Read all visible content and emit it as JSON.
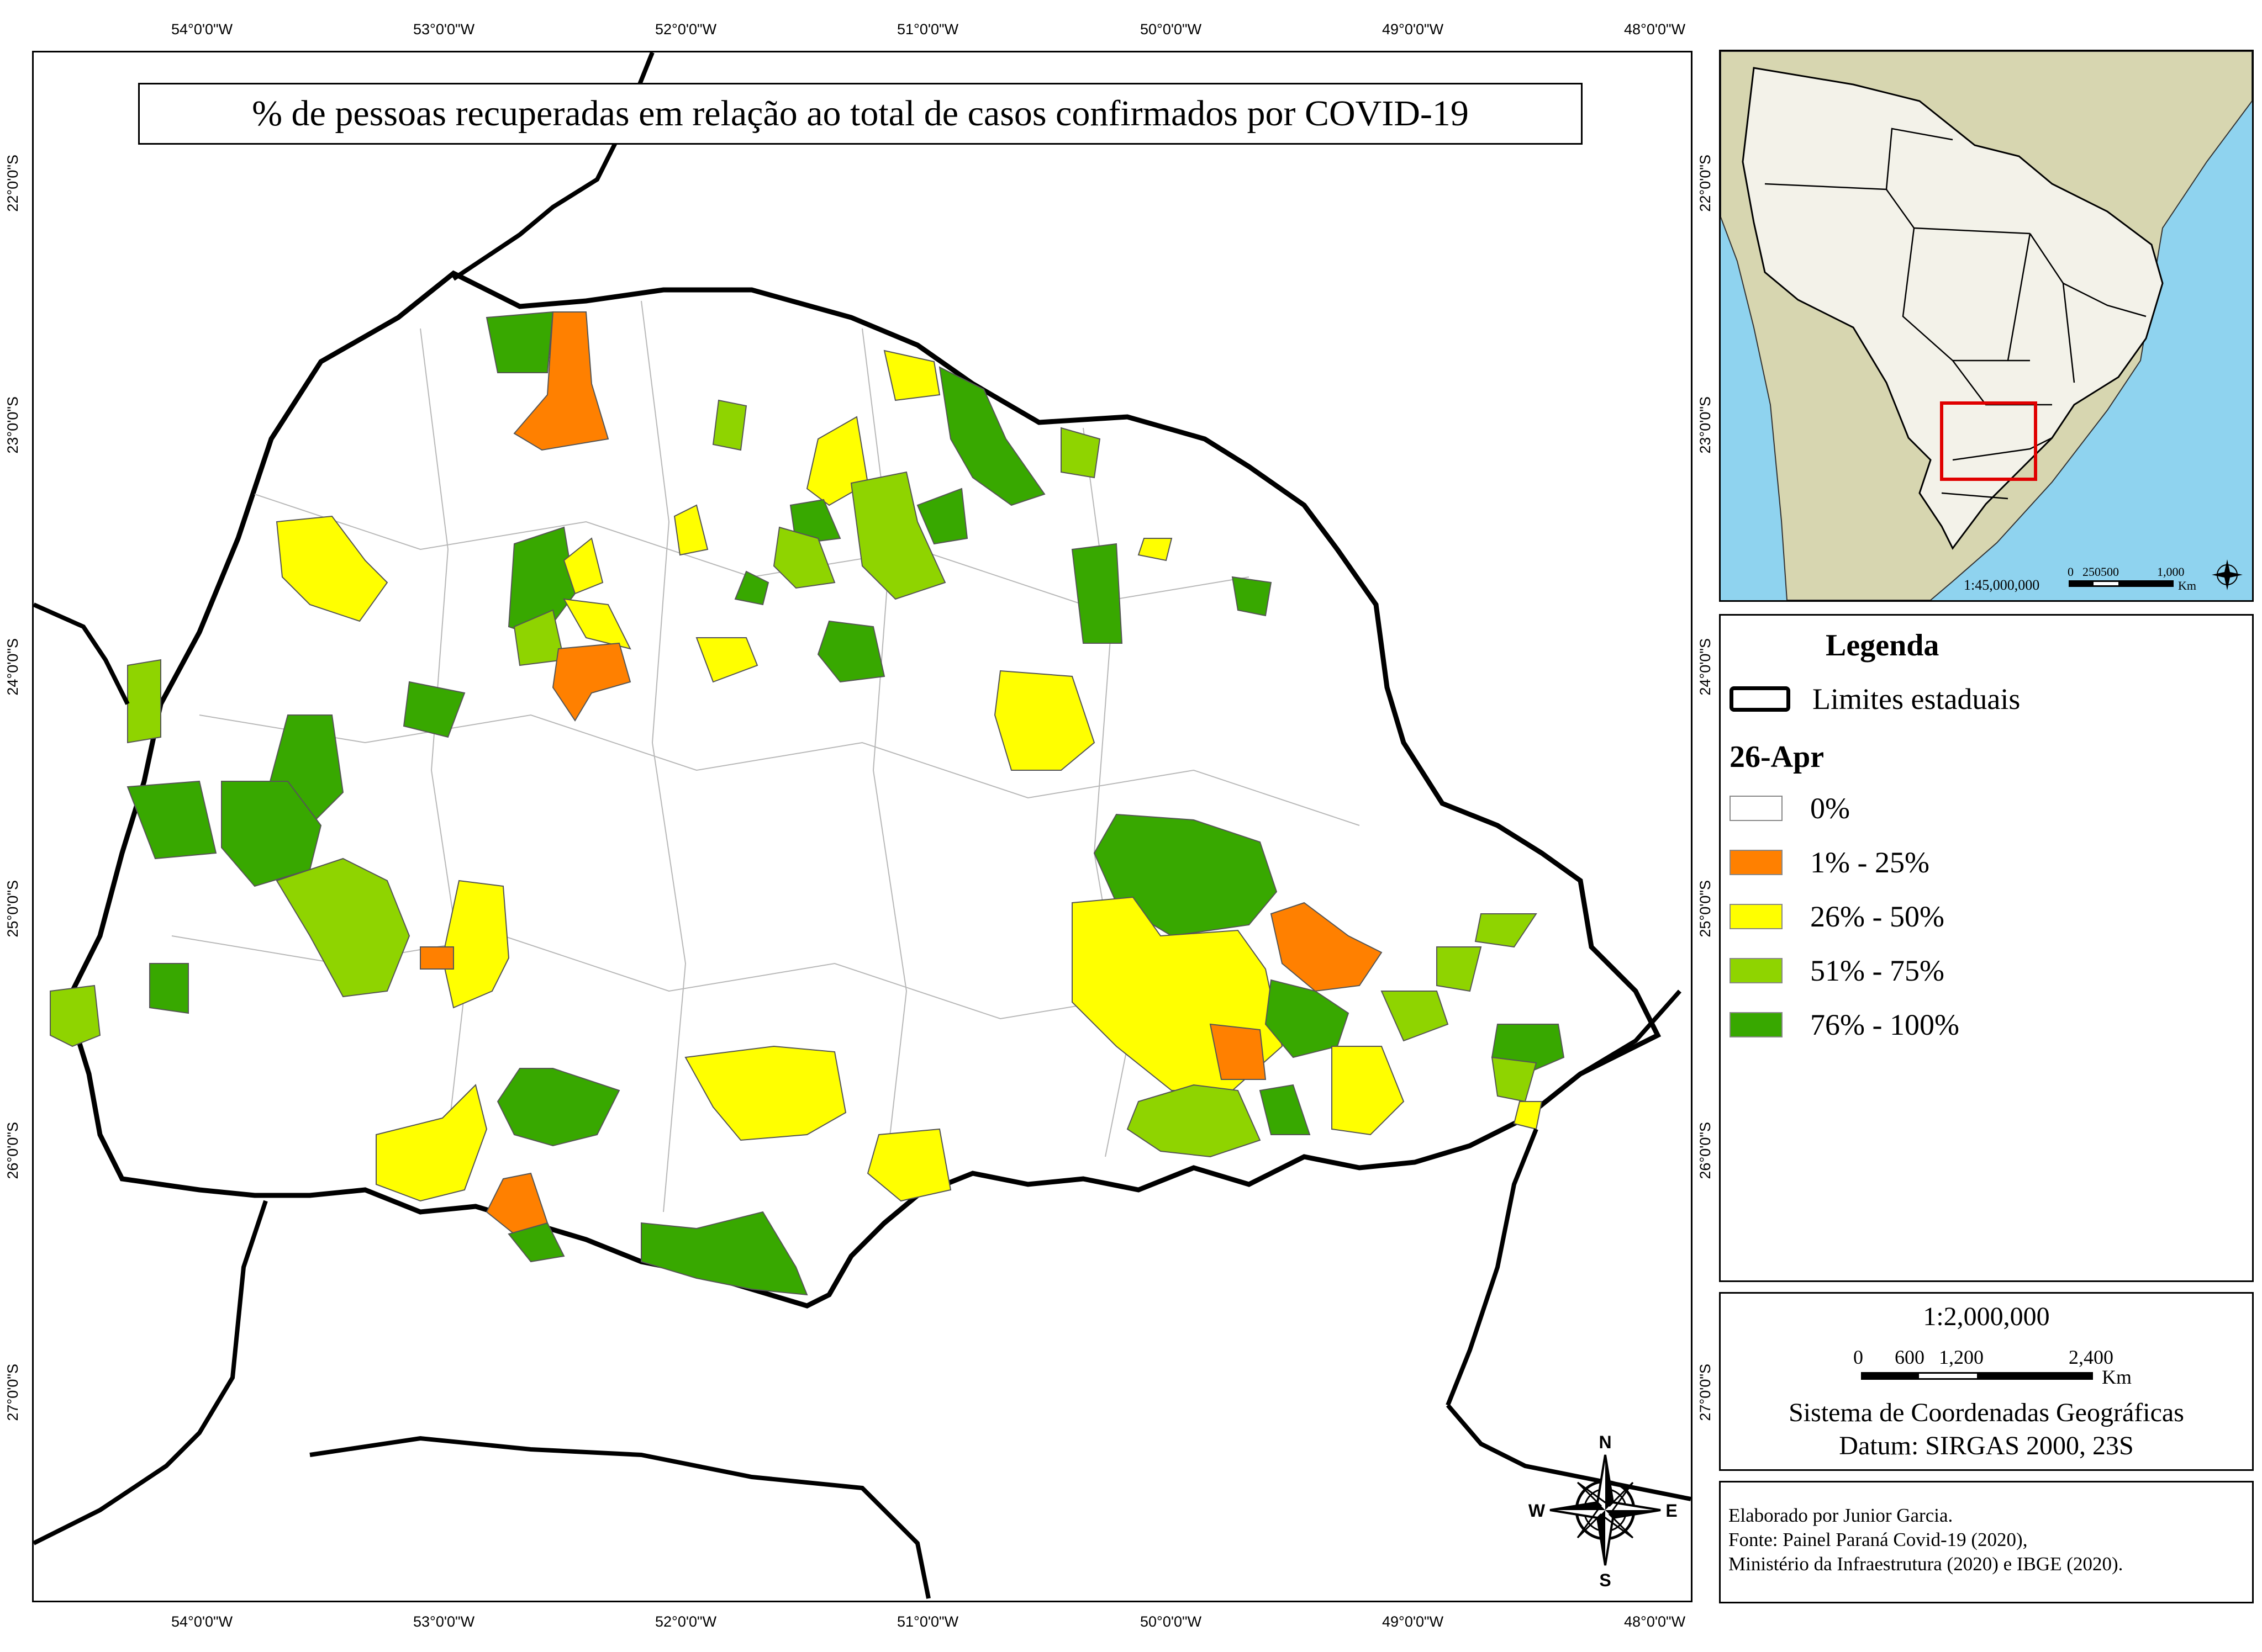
{
  "title": "% de pessoas recuperadas em relação ao total de casos confirmados por COVID-19",
  "axis": {
    "lon_ticks": [
      "54°0'0\"W",
      "53°0'0\"W",
      "52°0'0\"W",
      "51°0'0\"W",
      "50°0'0\"W",
      "49°0'0\"W",
      "48°0'0\"W"
    ],
    "lat_ticks": [
      "22°0'0\"S",
      "23°0'0\"S",
      "24°0'0\"S",
      "25°0'0\"S",
      "26°0'0\"S",
      "27°0'0\"S"
    ]
  },
  "compass": {
    "n": "N",
    "s": "S",
    "e": "E",
    "w": "W"
  },
  "inset": {
    "scale_text": "1:45,000,000",
    "scale_labels": [
      "0",
      "250500",
      "1,000"
    ],
    "scale_unit": "Km"
  },
  "legend": {
    "heading": "Legenda",
    "boundary_label": "Limites estaduais",
    "date_label": "26-Apr",
    "classes": [
      {
        "label": "0%",
        "color": "#ffffff"
      },
      {
        "label": "1% - 25%",
        "color": "#ff8000"
      },
      {
        "label": "26% - 50%",
        "color": "#ffff00"
      },
      {
        "label": "51% - 75%",
        "color": "#8fd400"
      },
      {
        "label": "76% - 100%",
        "color": "#38a800"
      }
    ]
  },
  "scale_box": {
    "ratio": "1:2,000,000",
    "bar_labels": [
      "0",
      "600",
      "1,200",
      "2,400"
    ],
    "unit": "Km",
    "crs": "Sistema de Coordenadas Geográficas",
    "datum": "Datum: SIRGAS 2000, 23S"
  },
  "credits": {
    "author": "Elaborado por Junior Garcia.",
    "source1": "Fonte: Painel Paraná Covid-19 (2020),",
    "source2": "Ministério da Infraestrutura (2020) e IBGE (2020)."
  }
}
